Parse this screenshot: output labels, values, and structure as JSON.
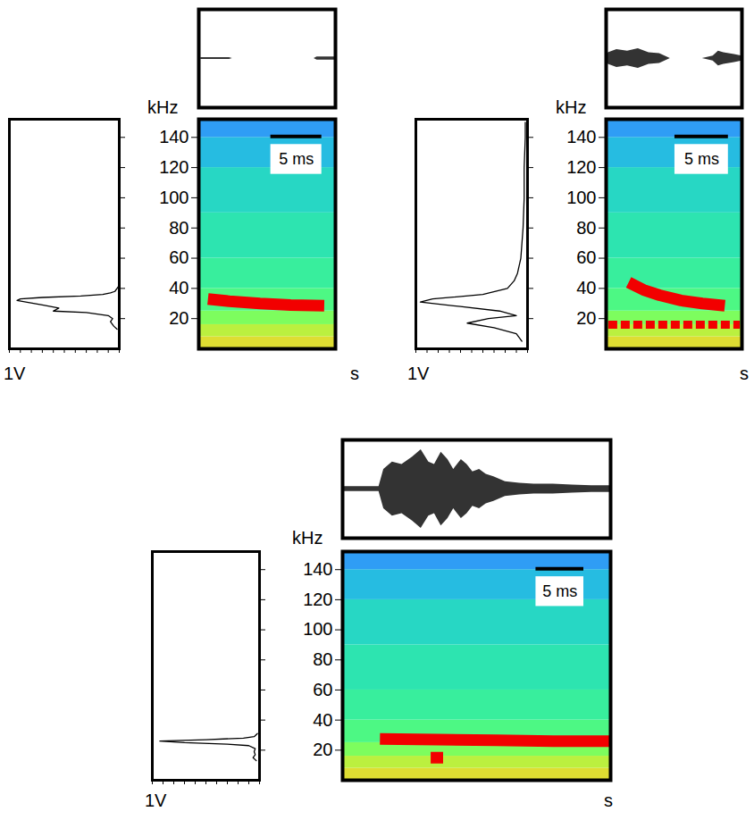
{
  "chart_data": [
    {
      "type": "spectrogram",
      "y_label": "kHz",
      "x_label": "s",
      "tick_labels": "y",
      "xlim": [
        0,
        13.4
      ],
      "ylim": [
        0,
        152
      ],
      "yticks": [
        20,
        40,
        60,
        80,
        100,
        120,
        140
      ],
      "scale_bar": {
        "length": 5,
        "label": "5 ms"
      },
      "background": {
        "band_edges": [
          0,
          8,
          16,
          25,
          40,
          60,
          90,
          120,
          140,
          152
        ],
        "levels": [
          0.6,
          0.55,
          0.47,
          0.4,
          0.36,
          0.33,
          0.3,
          0.25,
          0.2
        ],
        "level_range": [
          0,
          1
        ]
      },
      "contours": [
        {
          "x": [
            0.9,
            3,
            6,
            9,
            12.3
          ],
          "values": [
            33,
            31.5,
            30,
            29,
            28.5
          ],
          "color": "#f20000",
          "line_style": "solid"
        }
      ],
      "spectrum": {
        "type": "line",
        "x_label": "1V",
        "xlim": [
          1,
          0
        ],
        "tick_labels": false,
        "color": "#000000",
        "xticks": [
          0,
          0.1,
          0.2,
          0.3,
          0.4,
          0.5,
          0.6,
          0.7,
          0.8,
          0.9,
          1
        ],
        "freq": [
          13,
          15,
          18,
          20,
          22,
          24,
          25,
          27,
          29,
          31,
          32,
          33,
          34,
          35,
          36,
          37,
          38,
          40,
          42
        ],
        "values": [
          0.02,
          0.05,
          0.08,
          0.06,
          0.1,
          0.3,
          0.6,
          0.55,
          0.7,
          0.85,
          0.93,
          0.9,
          0.7,
          0.35,
          0.15,
          0.08,
          0.04,
          0.02,
          0
        ]
      },
      "waveform": {
        "type": "area",
        "ylim": [
          -1,
          1
        ],
        "tick_labels": false,
        "color": "#333333",
        "x": [
          0,
          0.3,
          3,
          3.3,
          11.3,
          11.6,
          13.4
        ],
        "values": [
          0,
          0.02,
          0.02,
          0,
          0,
          0.03,
          0.03
        ]
      }
    },
    {
      "type": "spectrogram",
      "y_label": "kHz",
      "x_label": "s",
      "tick_labels": "y",
      "xlim": [
        0,
        12.7
      ],
      "ylim": [
        0,
        152
      ],
      "yticks": [
        20,
        40,
        60,
        80,
        100,
        120,
        140
      ],
      "scale_bar": {
        "length": 5,
        "label": "5 ms"
      },
      "background": {
        "band_edges": [
          0,
          8,
          16,
          25,
          40,
          60,
          90,
          120,
          140,
          152
        ],
        "levels": [
          0.6,
          0.55,
          0.47,
          0.4,
          0.36,
          0.33,
          0.3,
          0.25,
          0.2
        ],
        "level_range": [
          0,
          1
        ]
      },
      "contours": [
        {
          "x": [
            2.1,
            3.5,
            5,
            7,
            9,
            11.1
          ],
          "values": [
            44,
            39,
            35.5,
            32,
            30,
            28.5
          ],
          "color": "#f20000",
          "line_style": "solid"
        },
        {
          "x": [
            0.2,
            12.5
          ],
          "values": [
            16,
            16
          ],
          "color": "#f20000",
          "line_style": "dashed"
        }
      ],
      "spectrum": {
        "type": "line",
        "x_label": "1V",
        "xlim": [
          1,
          0
        ],
        "tick_labels": false,
        "color": "#000000",
        "xticks": [
          0,
          0.1,
          0.2,
          0.3,
          0.4,
          0.5,
          0.6,
          0.7,
          0.8,
          0.9,
          1
        ],
        "freq": [
          5,
          10,
          14,
          17,
          20,
          22,
          25,
          28,
          31,
          33,
          36,
          40,
          45,
          50,
          60,
          80,
          100,
          120,
          140,
          150
        ],
        "values": [
          0.05,
          0.1,
          0.3,
          0.54,
          0.35,
          0.1,
          0.25,
          0.6,
          0.96,
          0.85,
          0.4,
          0.18,
          0.12,
          0.09,
          0.06,
          0.04,
          0.03,
          0.03,
          0.02,
          0.02
        ]
      },
      "waveform": {
        "type": "area",
        "ylim": [
          -1,
          1
        ],
        "tick_labels": false,
        "color": "#333333",
        "x": [
          0,
          0.2,
          1,
          2,
          3,
          4,
          5,
          5.5,
          6,
          9,
          10,
          10.5,
          11,
          12,
          12.7
        ],
        "values": [
          0,
          0.12,
          0.18,
          0.15,
          0.2,
          0.12,
          0.1,
          0.05,
          0,
          0,
          0.05,
          0.15,
          0.12,
          0.08,
          0.05
        ]
      }
    },
    {
      "type": "spectrogram",
      "y_label": "kHz",
      "x_label": "s",
      "tick_labels": "y",
      "xlim": [
        0,
        28
      ],
      "ylim": [
        0,
        152
      ],
      "yticks": [
        20,
        40,
        60,
        80,
        100,
        120,
        140
      ],
      "scale_bar": {
        "length": 5,
        "label": "5 ms"
      },
      "background": {
        "band_edges": [
          0,
          8,
          16,
          25,
          40,
          60,
          90,
          120,
          140,
          152
        ],
        "levels": [
          0.6,
          0.55,
          0.47,
          0.4,
          0.36,
          0.33,
          0.3,
          0.25,
          0.2
        ],
        "level_range": [
          0,
          1
        ]
      },
      "contours": [
        {
          "x": [
            3.9,
            10,
            16,
            22,
            28
          ],
          "values": [
            27.5,
            27,
            26.5,
            26,
            26
          ],
          "color": "#f20000",
          "line_style": "solid"
        },
        {
          "x": [
            9.2,
            10.5
          ],
          "values": [
            15,
            15
          ],
          "color": "#f20000",
          "line_style": "solid"
        }
      ],
      "spectrum": {
        "type": "line",
        "x_label": "1V",
        "xlim": [
          1,
          0
        ],
        "tick_labels": false,
        "color": "#000000",
        "xticks": [
          0,
          0.1,
          0.2,
          0.3,
          0.4,
          0.5,
          0.6,
          0.7,
          0.8,
          0.9,
          1
        ],
        "freq": [
          13,
          15,
          17,
          19,
          21,
          23,
          24,
          25,
          26,
          27,
          28,
          29,
          31
        ],
        "values": [
          0.03,
          0.06,
          0.04,
          0.05,
          0.04,
          0.1,
          0.3,
          0.7,
          0.93,
          0.5,
          0.15,
          0.05,
          0.02
        ]
      },
      "waveform": {
        "type": "area",
        "ylim": [
          -1,
          1
        ],
        "tick_labels": false,
        "color": "#333333",
        "x": [
          0,
          3.8,
          4.3,
          5.2,
          6.2,
          7.3,
          8.2,
          9.0,
          9.6,
          10.3,
          11.0,
          11.6,
          12.4,
          13.0,
          13.6,
          14.3,
          15.0,
          15.8,
          17,
          18.5,
          20,
          22,
          24,
          26,
          28
        ],
        "values": [
          0.05,
          0.05,
          0.4,
          0.55,
          0.5,
          0.65,
          0.8,
          0.55,
          0.5,
          0.75,
          0.6,
          0.4,
          0.6,
          0.5,
          0.35,
          0.4,
          0.3,
          0.25,
          0.15,
          0.12,
          0.1,
          0.1,
          0.08,
          0.07,
          0.07
        ]
      }
    }
  ]
}
